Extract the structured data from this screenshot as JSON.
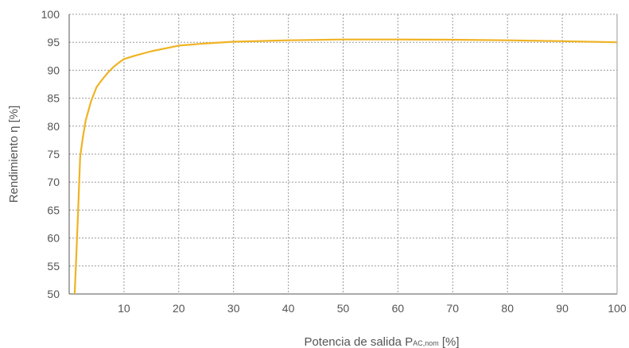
{
  "chart_data": {
    "type": "line",
    "xlabel_main": "Potencia de salida P",
    "xlabel_sub": "AC,nom",
    "xlabel_tail": " [%]",
    "ylabel": "Rendimiento η [%]",
    "xlim": [
      0,
      100
    ],
    "ylim": [
      50,
      100
    ],
    "x_ticks": [
      10,
      20,
      30,
      40,
      50,
      60,
      70,
      80,
      90,
      100
    ],
    "y_ticks": [
      50,
      55,
      60,
      65,
      70,
      75,
      80,
      85,
      90,
      95,
      100
    ],
    "grid": true,
    "line_color": "#f0b323",
    "series": [
      {
        "x": [
          1,
          1.3,
          1.6,
          2,
          2.5,
          3,
          4,
          5,
          6,
          7,
          8,
          9,
          10,
          12,
          15,
          20,
          25,
          30,
          40,
          50,
          60,
          70,
          80,
          90,
          100
        ],
        "y": [
          50,
          57,
          64,
          74.5,
          78,
          81,
          84.5,
          87,
          88.3,
          89.5,
          90.5,
          91.3,
          92,
          92.6,
          93.4,
          94.4,
          94.8,
          95.1,
          95.35,
          95.5,
          95.5,
          95.45,
          95.35,
          95.2,
          95.0
        ]
      }
    ]
  }
}
